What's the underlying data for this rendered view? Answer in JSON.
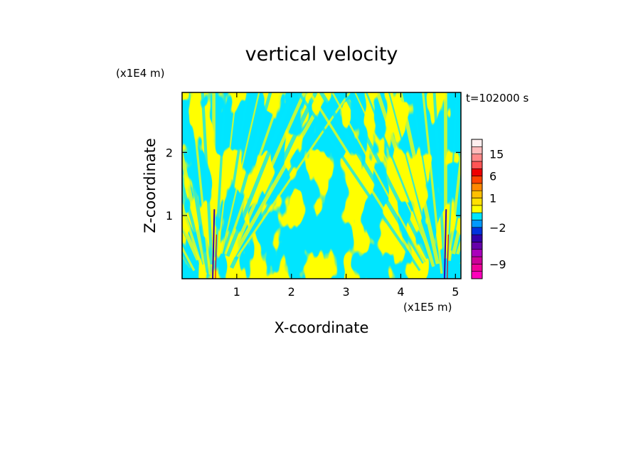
{
  "chart_data": {
    "type": "heatmap",
    "title": "vertical velocity",
    "xlabel": "X-coordinate",
    "ylabel": "Z-coordinate",
    "x_scale_label": "(x1E5 m)",
    "y_scale_label": "(x1E4 m)",
    "time_label": "t=102000 s",
    "xlim": [
      0,
      5.1
    ],
    "ylim": [
      0,
      2.95
    ],
    "x_ticks": [
      1,
      2,
      3,
      4,
      5
    ],
    "y_ticks": [
      1,
      2
    ],
    "x_tick_labels": [
      "1",
      "2",
      "3",
      "4",
      "5"
    ],
    "y_tick_labels": [
      "1",
      "2"
    ],
    "colorbar": {
      "levels": [
        -12,
        -10.5,
        -9,
        -7.5,
        -6,
        -4.5,
        -3,
        -2,
        -1,
        0,
        0.5,
        1,
        1.5,
        3,
        6,
        9,
        12,
        15,
        18,
        21
      ],
      "colors": [
        "#ff00bb",
        "#ee0099",
        "#cc0099",
        "#aa00bb",
        "#6600aa",
        "#3300aa",
        "#0033dd",
        "#0099ff",
        "#00e5ff",
        "#ffff00",
        "#ffe000",
        "#ffc000",
        "#ff8800",
        "#ff4400",
        "#ee0000",
        "#ff5555",
        "#ff8888",
        "#ffbbbb",
        "#ffeeee"
      ],
      "tick_values": [
        -9,
        -2,
        1,
        6,
        15
      ],
      "tick_labels": [
        "-9",
        "-2",
        "1",
        "6",
        "15"
      ]
    },
    "field_description_colors": {
      "negative": "#00e5ff",
      "positive": "#ffff00",
      "strong": "#3300aa"
    }
  }
}
